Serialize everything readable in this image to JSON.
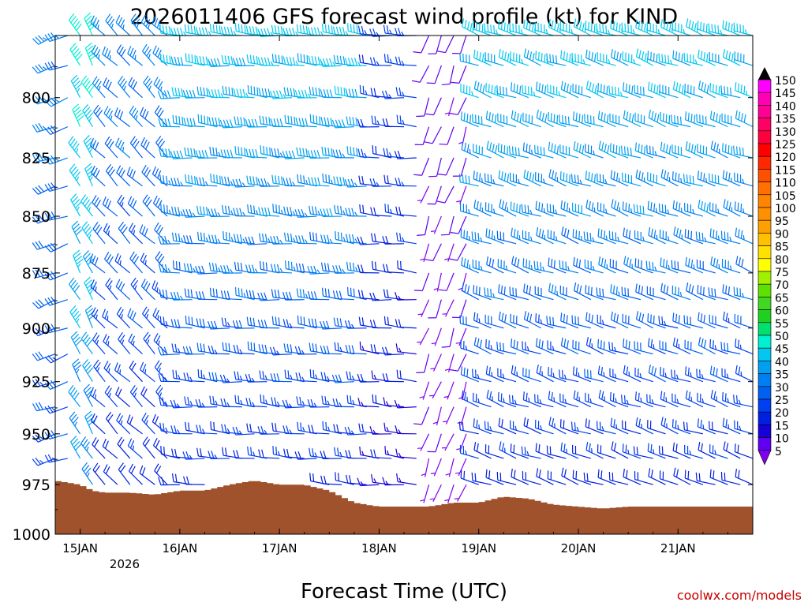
{
  "chart_data": {
    "type": "wind-barb time-height",
    "title": "2026011406 GFS forecast wind profile (kt) for KIND",
    "xlabel": "Forecast Time (UTC)",
    "ylabel": "",
    "credit": "coolwx.com/models",
    "x_day_labels": [
      "15JAN",
      "16JAN",
      "17JAN",
      "18JAN",
      "19JAN",
      "20JAN",
      "21JAN"
    ],
    "x_day_positions_hours": [
      24,
      48,
      72,
      96,
      120,
      144,
      168
    ],
    "x_year_label": "2026",
    "x_range_hours": [
      18,
      186
    ],
    "y_ticks": [
      "800",
      "825",
      "850",
      "875",
      "900",
      "925",
      "950",
      "975",
      "1000"
    ],
    "y_tick_values": [
      800,
      825,
      850,
      875,
      900,
      925,
      950,
      975,
      1000
    ],
    "y_range_hpa": [
      775,
      1000
    ],
    "y_scale": "log-pressure",
    "levels_hpa": [
      775,
      787,
      800,
      812,
      825,
      837,
      850,
      862,
      875,
      887,
      900,
      912,
      925,
      937,
      950,
      962,
      975
    ],
    "times_hours": [
      18,
      21,
      24,
      27,
      30,
      33,
      36,
      39,
      42,
      45,
      48,
      51,
      54,
      57,
      60,
      63,
      66,
      69,
      72,
      75,
      78,
      81,
      84,
      87,
      90,
      93,
      96,
      99,
      102,
      105,
      108,
      111,
      114,
      117,
      120,
      123,
      126,
      129,
      132,
      135,
      138,
      141,
      144,
      147,
      150,
      153,
      156,
      159,
      162,
      165,
      168,
      171,
      174,
      177,
      180,
      183,
      186
    ],
    "wind_regimes": [
      {
        "hours": [
          18,
          24
        ],
        "direction_deg": 250,
        "speed_kt": [
          25,
          35
        ]
      },
      {
        "hours": [
          24,
          30
        ],
        "direction_deg": 330,
        "speed_kt": [
          35,
          50
        ]
      },
      {
        "hours": [
          30,
          48
        ],
        "direction_deg": 315,
        "speed_kt": [
          20,
          35
        ]
      },
      {
        "hours": [
          48,
          96
        ],
        "direction_deg": 275,
        "speed_kt": [
          20,
          45
        ]
      },
      {
        "hours": [
          96,
          108
        ],
        "direction_deg": 275,
        "speed_kt": [
          15,
          25
        ]
      },
      {
        "hours": [
          108,
          120
        ],
        "direction_deg": 200,
        "speed_kt": [
          5,
          10
        ]
      },
      {
        "hours": [
          120,
          186
        ],
        "direction_deg": 290,
        "speed_kt": [
          20,
          45
        ]
      }
    ],
    "surface_pressure_hpa": [
      {
        "hour": 18,
        "p": 973
      },
      {
        "hour": 24,
        "p": 975
      },
      {
        "hour": 27,
        "p": 978
      },
      {
        "hour": 30,
        "p": 979
      },
      {
        "hour": 36,
        "p": 979
      },
      {
        "hour": 42,
        "p": 980
      },
      {
        "hour": 48,
        "p": 978
      },
      {
        "hour": 54,
        "p": 978
      },
      {
        "hour": 60,
        "p": 975
      },
      {
        "hour": 66,
        "p": 973
      },
      {
        "hour": 69,
        "p": 974
      },
      {
        "hour": 72,
        "p": 975
      },
      {
        "hour": 78,
        "p": 975
      },
      {
        "hour": 84,
        "p": 978
      },
      {
        "hour": 90,
        "p": 984
      },
      {
        "hour": 96,
        "p": 986
      },
      {
        "hour": 102,
        "p": 986
      },
      {
        "hour": 108,
        "p": 986
      },
      {
        "hour": 114,
        "p": 984
      },
      {
        "hour": 120,
        "p": 984
      },
      {
        "hour": 126,
        "p": 981
      },
      {
        "hour": 132,
        "p": 982
      },
      {
        "hour": 138,
        "p": 985
      },
      {
        "hour": 144,
        "p": 986
      },
      {
        "hour": 150,
        "p": 987
      },
      {
        "hour": 156,
        "p": 986
      },
      {
        "hour": 162,
        "p": 986
      },
      {
        "hour": 168,
        "p": 986
      },
      {
        "hour": 174,
        "p": 986
      },
      {
        "hour": 180,
        "p": 986
      },
      {
        "hour": 186,
        "p": 986
      }
    ],
    "colorbar": {
      "labels": [
        "150",
        "145",
        "140",
        "135",
        "130",
        "125",
        "120",
        "115",
        "110",
        "105",
        "100",
        "95",
        "90",
        "85",
        "80",
        "75",
        "70",
        "65",
        "60",
        "55",
        "50",
        "45",
        "40",
        "35",
        "30",
        "25",
        "20",
        "15",
        "10",
        "5"
      ],
      "colors": [
        "#ff00ff",
        "#ff00b4",
        "#ff0096",
        "#ff0064",
        "#ff003c",
        "#ff0000",
        "#ff2800",
        "#ff5000",
        "#ff7000",
        "#ff8400",
        "#ff9000",
        "#ffa000",
        "#ffc000",
        "#ffe000",
        "#ffff00",
        "#a0f000",
        "#60e000",
        "#40d820",
        "#20d020",
        "#00e070",
        "#00f0d0",
        "#00c8f0",
        "#00a0f0",
        "#0080f0",
        "#0060f0",
        "#0040f0",
        "#0020e0",
        "#1800d8",
        "#6000f0",
        "#8000f0"
      ]
    }
  }
}
